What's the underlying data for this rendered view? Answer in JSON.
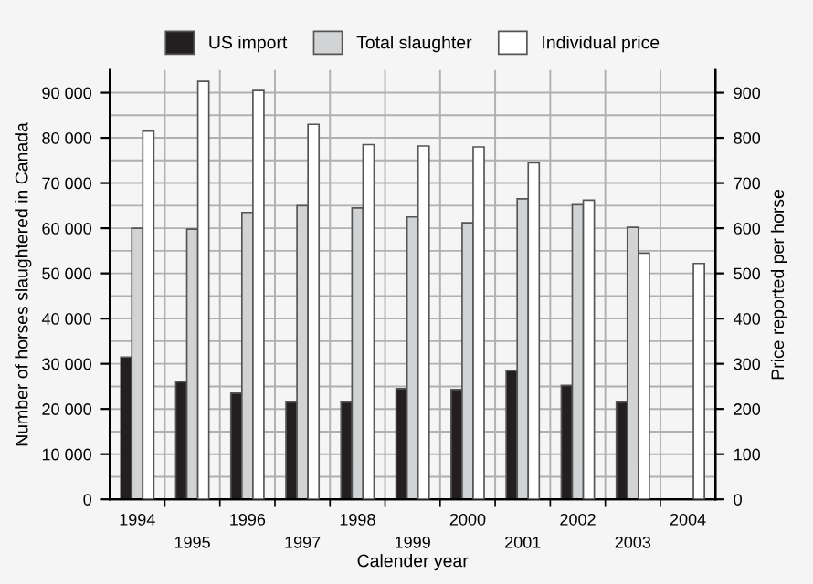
{
  "chart_data": {
    "type": "bar",
    "xlabel": "Calender year",
    "ylabel": "Number of horses slaughtered in Canada",
    "y2label": "Price reported per horse",
    "categories": [
      "1994",
      "1995",
      "1996",
      "1997",
      "1998",
      "1999",
      "2000",
      "2001",
      "2002",
      "2003",
      "2004"
    ],
    "series": [
      {
        "name": "US import",
        "color": "#231f20",
        "values": [
          31500,
          26000,
          23500,
          21500,
          21500,
          24500,
          24300,
          28500,
          25200,
          21500,
          null
        ]
      },
      {
        "name": "Total slaughter",
        "color": "#d1d3d4",
        "values": [
          60000,
          59800,
          63500,
          65000,
          64500,
          62500,
          61200,
          66500,
          65200,
          60200,
          null
        ]
      },
      {
        "name": "Individual price",
        "color": "#ffffff",
        "axis": "y2",
        "values": [
          815,
          925,
          905,
          830,
          785,
          782,
          780,
          745,
          662,
          545,
          522
        ]
      }
    ],
    "ylim": [
      0,
      95000
    ],
    "yticks": [
      0,
      {
        "value": 10000,
        "label": "10 000"
      },
      {
        "value": 20000,
        "label": "20 000"
      },
      {
        "value": 30000,
        "label": "30 000"
      },
      {
        "value": 40000,
        "label": "40 000"
      },
      {
        "value": 50000,
        "label": "50 000"
      },
      {
        "value": 60000,
        "label": "60 000"
      },
      {
        "value": 70000,
        "label": "70 000"
      },
      {
        "value": 80000,
        "label": "80 000"
      },
      {
        "value": 90000,
        "label": "90 000"
      }
    ],
    "y2lim": [
      0,
      950
    ],
    "y2ticks": [
      0,
      100,
      200,
      300,
      400,
      500,
      600,
      700,
      800,
      900
    ],
    "grid": true,
    "legend": "top"
  }
}
